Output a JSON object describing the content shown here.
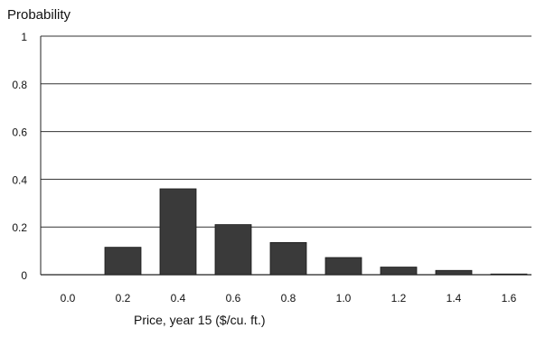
{
  "chart_data": {
    "type": "bar",
    "title": "",
    "ylabel": "Probability",
    "xlabel": "Price, year 15 ($/cu. ft.)",
    "categories": [
      "0.0",
      "0.2",
      "0.4",
      "0.6",
      "0.8",
      "1.0",
      "1.2",
      "1.4",
      "1.6"
    ],
    "values": [
      0,
      0.115,
      0.36,
      0.21,
      0.135,
      0.072,
      0.032,
      0.018,
      0.003
    ],
    "ylim": [
      0,
      1
    ],
    "yticks": [
      "0",
      "0.2",
      "0.4",
      "0.6",
      "0.8",
      "1"
    ],
    "grid": true,
    "legend": "none",
    "bar_color": "#3a3a3a"
  }
}
